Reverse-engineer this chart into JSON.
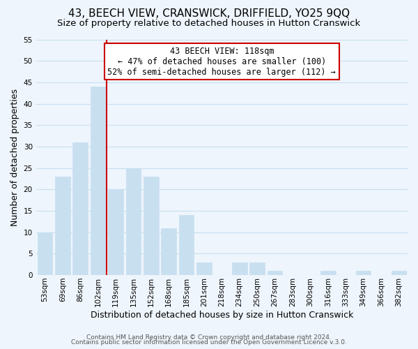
{
  "title": "43, BEECH VIEW, CRANSWICK, DRIFFIELD, YO25 9QQ",
  "subtitle": "Size of property relative to detached houses in Hutton Cranswick",
  "xlabel": "Distribution of detached houses by size in Hutton Cranswick",
  "ylabel": "Number of detached properties",
  "bar_color": "#c8dff0",
  "bar_edge_color": "#c8dff0",
  "grid_color": "#c8dff0",
  "background_color": "#eef5fc",
  "vline_color": "#cc0000",
  "annotation_line1": "43 BEECH VIEW: 118sqm",
  "annotation_line2": "← 47% of detached houses are smaller (100)",
  "annotation_line3": "52% of semi-detached houses are larger (112) →",
  "annotation_box_color": "#ffffff",
  "annotation_box_edge": "#cc0000",
  "footer_line1": "Contains HM Land Registry data © Crown copyright and database right 2024.",
  "footer_line2": "Contains public sector information licensed under the Open Government Licence v.3.0.",
  "categories": [
    "53sqm",
    "69sqm",
    "86sqm",
    "102sqm",
    "119sqm",
    "135sqm",
    "152sqm",
    "168sqm",
    "185sqm",
    "201sqm",
    "218sqm",
    "234sqm",
    "250sqm",
    "267sqm",
    "283sqm",
    "300sqm",
    "316sqm",
    "333sqm",
    "349sqm",
    "366sqm",
    "382sqm"
  ],
  "values": [
    10,
    23,
    31,
    44,
    20,
    25,
    23,
    11,
    14,
    3,
    0,
    3,
    3,
    1,
    0,
    0,
    1,
    0,
    1,
    0,
    1
  ],
  "ylim": [
    0,
    55
  ],
  "yticks": [
    0,
    5,
    10,
    15,
    20,
    25,
    30,
    35,
    40,
    45,
    50,
    55
  ],
  "title_fontsize": 11,
  "subtitle_fontsize": 9.5,
  "axis_label_fontsize": 9,
  "tick_fontsize": 7.5,
  "footer_fontsize": 6.5,
  "annotation_fontsize": 8.5,
  "vline_index": 3.5
}
